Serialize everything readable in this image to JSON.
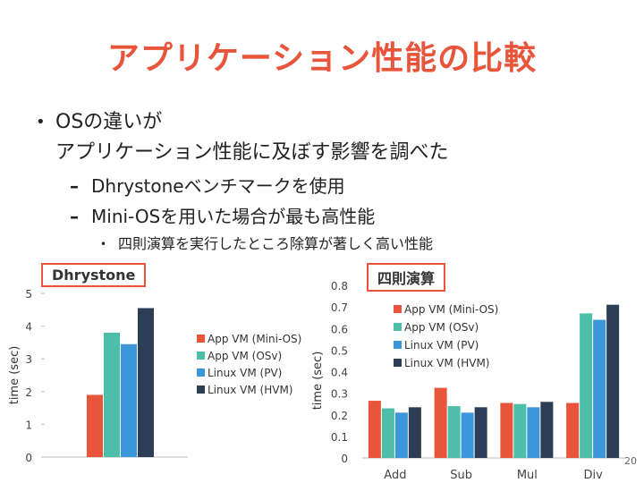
{
  "slide": {
    "title": "アプリケーション性能の比較",
    "bullet1_line1": "OSの違いが",
    "bullet1_line2": "アプリケーション性能に及ぼす影響を調べた",
    "sub1": "Dhrystoneベンチマークを使用",
    "sub2": "Mini-OSを用いた場合が最も高性能",
    "subsub1": "四則演算を実行したところ除算が著しく高い性能",
    "page_number": "20"
  },
  "colors": {
    "title": "#e8553a",
    "series": [
      "#e8553a",
      "#4dbfa8",
      "#3b97d9",
      "#2c3e55"
    ]
  },
  "chart_data": [
    {
      "type": "bar",
      "title": "Dhrystone",
      "categories": [
        ""
      ],
      "ylabel": "time (sec)",
      "ylim": [
        0,
        5
      ],
      "yticks": [
        0,
        1,
        2,
        3,
        4,
        5
      ],
      "legend": "right",
      "series": [
        {
          "name": "App VM (Mini-OS)",
          "values": [
            1.9
          ]
        },
        {
          "name": "App VM (OSv)",
          "values": [
            3.8
          ]
        },
        {
          "name": "Linux VM (PV)",
          "values": [
            3.45
          ]
        },
        {
          "name": "Linux VM (HVM)",
          "values": [
            4.55
          ]
        }
      ]
    },
    {
      "type": "bar",
      "title": "四則演算",
      "categories": [
        "Add",
        "Sub",
        "Mul",
        "Div"
      ],
      "ylabel": "time (sec)",
      "ylim": [
        0,
        0.8
      ],
      "yticks": [
        0,
        0.1,
        0.2,
        0.3,
        0.4,
        0.5,
        0.6,
        0.7,
        0.8
      ],
      "legend": "top-center",
      "series": [
        {
          "name": "App VM (Mini-OS)",
          "values": [
            0.265,
            0.325,
            0.255,
            0.255
          ]
        },
        {
          "name": "App VM (OSv)",
          "values": [
            0.23,
            0.24,
            0.25,
            0.67
          ]
        },
        {
          "name": "Linux VM (PV)",
          "values": [
            0.21,
            0.21,
            0.235,
            0.64
          ]
        },
        {
          "name": "Linux VM (HVM)",
          "values": [
            0.235,
            0.235,
            0.26,
            0.71
          ]
        }
      ]
    }
  ]
}
